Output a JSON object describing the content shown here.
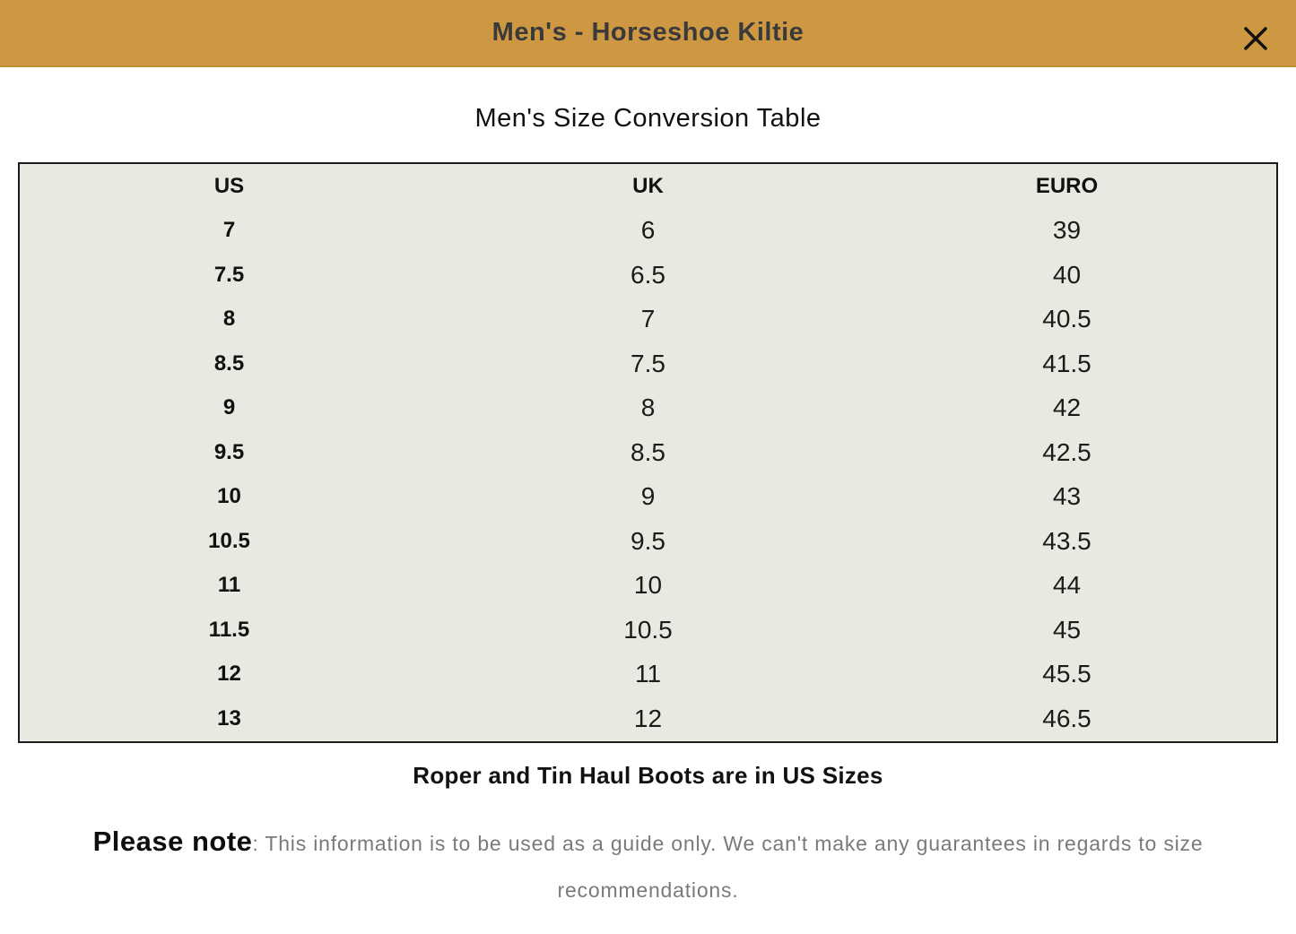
{
  "header": {
    "title": "Men's - Horseshoe Kiltie",
    "close_icon": "x-close-icon"
  },
  "main": {
    "table_title": "Men's Size Conversion Table",
    "us_sizes_note": "Roper and Tin Haul Boots are in US Sizes",
    "note_label": "Please note",
    "note_text": ": This information is to be used as a guide only. We can't make any guarantees in regards to size recommendations."
  },
  "table": {
    "columns": [
      "US",
      "UK",
      "EURO"
    ],
    "rows": [
      {
        "us": "7",
        "uk": "6",
        "euro": "39"
      },
      {
        "us": "7.5",
        "uk": "6.5",
        "euro": "40"
      },
      {
        "us": "8",
        "uk": "7",
        "euro": "40.5"
      },
      {
        "us": "8.5",
        "uk": "7.5",
        "euro": "41.5"
      },
      {
        "us": "9",
        "uk": "8",
        "euro": "42"
      },
      {
        "us": "9.5",
        "uk": "8.5",
        "euro": "42.5"
      },
      {
        "us": "10",
        "uk": "9",
        "euro": "43"
      },
      {
        "us": "10.5",
        "uk": "9.5",
        "euro": "43.5"
      },
      {
        "us": "11",
        "uk": "10",
        "euro": "44"
      },
      {
        "us": "11.5",
        "uk": "10.5",
        "euro": "45"
      },
      {
        "us": "12",
        "uk": "11",
        "euro": "45.5"
      },
      {
        "us": "13",
        "uk": "12",
        "euro": "46.5"
      }
    ]
  },
  "colors": {
    "header_background": "#CE9843",
    "header_title": "#3A3A3A",
    "table_background": "#E9E8E1",
    "table_border": "#1C1C1C",
    "disclaimer_gray": "#7A7A7A"
  }
}
